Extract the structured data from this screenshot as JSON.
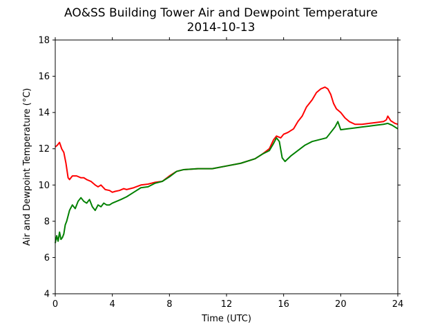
{
  "chart_data": {
    "type": "line",
    "title": "AO&SS Building Tower Air and Dewpoint Temperature",
    "subtitle": "2014-10-13",
    "xlabel": "Time (UTC)",
    "ylabel": "Air and Dewpoint Temperature (°C)",
    "xlim": [
      0,
      24
    ],
    "ylim": [
      4,
      18
    ],
    "xticks": [
      0,
      4,
      8,
      12,
      16,
      20,
      24
    ],
    "yticks": [
      4,
      6,
      8,
      10,
      12,
      14,
      16,
      18
    ],
    "grid": false,
    "series": [
      {
        "color": "#ff0000",
        "x": [
          0,
          0.15,
          0.3,
          0.45,
          0.6,
          0.75,
          0.9,
          1.0,
          1.2,
          1.5,
          1.8,
          2.0,
          2.2,
          2.5,
          2.8,
          3.0,
          3.2,
          3.5,
          3.8,
          4.0,
          4.2,
          4.5,
          4.8,
          5.0,
          5.5,
          6.0,
          6.5,
          7.0,
          7.5,
          8.0,
          8.5,
          9.0,
          10.0,
          11.0,
          12.0,
          13.0,
          14.0,
          14.5,
          15.0,
          15.3,
          15.5,
          15.8,
          16.0,
          16.3,
          16.7,
          17.0,
          17.3,
          17.6,
          18.0,
          18.3,
          18.6,
          18.9,
          19.1,
          19.3,
          19.5,
          19.7,
          20.0,
          20.3,
          20.6,
          21.0,
          21.5,
          22.0,
          22.5,
          23.0,
          23.2,
          23.3,
          23.5,
          23.8,
          24.0
        ],
        "y": [
          12.1,
          12.2,
          12.35,
          12.0,
          11.8,
          11.2,
          10.4,
          10.3,
          10.5,
          10.5,
          10.4,
          10.4,
          10.3,
          10.2,
          10.0,
          9.9,
          10.0,
          9.75,
          9.7,
          9.6,
          9.65,
          9.7,
          9.8,
          9.75,
          9.85,
          10.0,
          10.05,
          10.15,
          10.2,
          10.5,
          10.75,
          10.85,
          10.9,
          10.9,
          11.05,
          11.2,
          11.45,
          11.7,
          12.0,
          12.5,
          12.7,
          12.6,
          12.8,
          12.9,
          13.1,
          13.5,
          13.8,
          14.3,
          14.7,
          15.1,
          15.3,
          15.4,
          15.3,
          15.0,
          14.5,
          14.2,
          14.0,
          13.7,
          13.5,
          13.35,
          13.35,
          13.4,
          13.45,
          13.5,
          13.6,
          13.8,
          13.55,
          13.4,
          13.35
        ]
      },
      {
        "color": "#008000",
        "x": [
          0,
          0.1,
          0.2,
          0.3,
          0.4,
          0.5,
          0.6,
          0.7,
          0.8,
          0.9,
          1.0,
          1.2,
          1.4,
          1.6,
          1.8,
          2.0,
          2.2,
          2.4,
          2.6,
          2.8,
          3.0,
          3.2,
          3.4,
          3.6,
          3.8,
          4.0,
          4.3,
          4.6,
          5.0,
          5.5,
          6.0,
          6.5,
          7.0,
          7.5,
          8.0,
          8.5,
          9.0,
          10.0,
          11.0,
          12.0,
          13.0,
          14.0,
          14.5,
          15.0,
          15.3,
          15.5,
          15.7,
          15.9,
          16.1,
          16.5,
          17.0,
          17.5,
          18.0,
          18.5,
          19.0,
          19.3,
          19.6,
          19.8,
          20.0,
          20.5,
          21.0,
          21.5,
          22.0,
          22.5,
          23.0,
          23.3,
          23.6,
          24.0
        ],
        "y": [
          6.8,
          7.2,
          6.9,
          7.4,
          7.0,
          7.1,
          7.3,
          7.8,
          8.0,
          8.3,
          8.6,
          8.9,
          8.7,
          9.1,
          9.3,
          9.1,
          9.0,
          9.2,
          8.8,
          8.6,
          8.9,
          8.8,
          9.0,
          8.9,
          8.9,
          9.0,
          9.1,
          9.2,
          9.35,
          9.6,
          9.85,
          9.9,
          10.1,
          10.2,
          10.45,
          10.75,
          10.85,
          10.9,
          10.9,
          11.05,
          11.2,
          11.45,
          11.7,
          11.9,
          12.3,
          12.6,
          12.4,
          11.5,
          11.3,
          11.6,
          11.9,
          12.2,
          12.4,
          12.5,
          12.6,
          12.9,
          13.2,
          13.5,
          13.05,
          13.1,
          13.15,
          13.2,
          13.25,
          13.3,
          13.35,
          13.4,
          13.3,
          13.1
        ]
      }
    ]
  }
}
